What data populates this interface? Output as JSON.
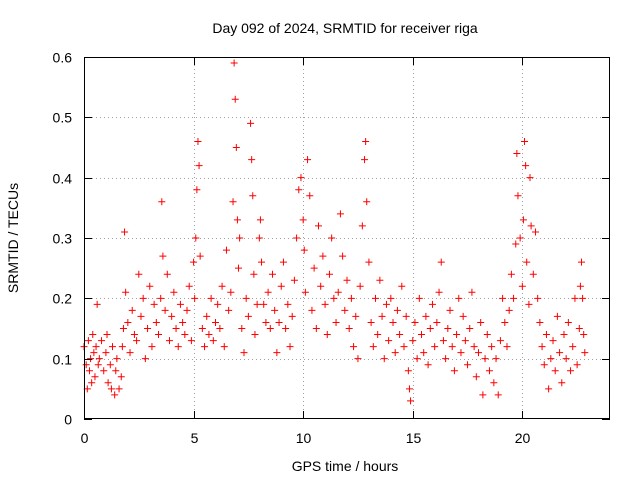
{
  "chart_data": {
    "type": "scatter",
    "title": "Day 092 of 2024, SRMTID for receiver riga",
    "xlabel": "GPS time / hours",
    "ylabel": "SRMTID / TECUs",
    "xlim": [
      0,
      24
    ],
    "ylim": [
      0,
      0.6
    ],
    "xticks": [
      0,
      5,
      10,
      15,
      20
    ],
    "xtick_labels": [
      "0",
      "5",
      "10",
      "15",
      "20"
    ],
    "yticks": [
      0,
      0.1,
      0.2,
      0.3,
      0.4,
      0.5,
      0.6
    ],
    "ytick_labels": [
      "0",
      "0.1",
      "0.2",
      "0.3",
      "0.4",
      "0.5",
      "0.6"
    ],
    "grid": true,
    "marker": "+",
    "color": "#ff0000",
    "series": [
      {
        "name": "SRMTID",
        "points": [
          [
            0.0,
            0.12
          ],
          [
            0.1,
            0.09
          ],
          [
            0.15,
            0.05
          ],
          [
            0.2,
            0.13
          ],
          [
            0.25,
            0.08
          ],
          [
            0.3,
            0.1
          ],
          [
            0.35,
            0.06
          ],
          [
            0.4,
            0.14
          ],
          [
            0.45,
            0.11
          ],
          [
            0.5,
            0.07
          ],
          [
            0.55,
            0.12
          ],
          [
            0.6,
            0.19
          ],
          [
            0.65,
            0.09
          ],
          [
            0.7,
            0.1
          ],
          [
            0.8,
            0.13
          ],
          [
            0.9,
            0.08
          ],
          [
            1.0,
            0.11
          ],
          [
            1.05,
            0.14
          ],
          [
            1.1,
            0.06
          ],
          [
            1.2,
            0.09
          ],
          [
            1.25,
            0.05
          ],
          [
            1.3,
            0.12
          ],
          [
            1.4,
            0.04
          ],
          [
            1.45,
            0.08
          ],
          [
            1.5,
            0.1
          ],
          [
            1.6,
            0.05
          ],
          [
            1.7,
            0.07
          ],
          [
            1.75,
            0.12
          ],
          [
            1.8,
            0.15
          ],
          [
            1.85,
            0.31
          ],
          [
            1.9,
            0.21
          ],
          [
            2.0,
            0.16
          ],
          [
            2.1,
            0.11
          ],
          [
            2.2,
            0.18
          ],
          [
            2.3,
            0.14
          ],
          [
            2.4,
            0.13
          ],
          [
            2.5,
            0.24
          ],
          [
            2.6,
            0.17
          ],
          [
            2.7,
            0.2
          ],
          [
            2.8,
            0.1
          ],
          [
            2.9,
            0.15
          ],
          [
            3.0,
            0.22
          ],
          [
            3.1,
            0.12
          ],
          [
            3.2,
            0.19
          ],
          [
            3.3,
            0.16
          ],
          [
            3.4,
            0.14
          ],
          [
            3.5,
            0.2
          ],
          [
            3.55,
            0.36
          ],
          [
            3.6,
            0.27
          ],
          [
            3.7,
            0.18
          ],
          [
            3.8,
            0.24
          ],
          [
            3.9,
            0.13
          ],
          [
            4.0,
            0.17
          ],
          [
            4.1,
            0.21
          ],
          [
            4.2,
            0.15
          ],
          [
            4.3,
            0.12
          ],
          [
            4.4,
            0.19
          ],
          [
            4.5,
            0.16
          ],
          [
            4.6,
            0.14
          ],
          [
            4.7,
            0.18
          ],
          [
            4.8,
            0.22
          ],
          [
            4.9,
            0.13
          ],
          [
            5.0,
            0.26
          ],
          [
            5.05,
            0.2
          ],
          [
            5.1,
            0.3
          ],
          [
            5.15,
            0.38
          ],
          [
            5.2,
            0.46
          ],
          [
            5.25,
            0.42
          ],
          [
            5.3,
            0.27
          ],
          [
            5.4,
            0.15
          ],
          [
            5.5,
            0.12
          ],
          [
            5.6,
            0.17
          ],
          [
            5.7,
            0.14
          ],
          [
            5.8,
            0.2
          ],
          [
            5.9,
            0.13
          ],
          [
            6.0,
            0.16
          ],
          [
            6.1,
            0.19
          ],
          [
            6.2,
            0.15
          ],
          [
            6.3,
            0.22
          ],
          [
            6.4,
            0.12
          ],
          [
            6.5,
            0.28
          ],
          [
            6.6,
            0.18
          ],
          [
            6.7,
            0.21
          ],
          [
            6.8,
            0.36
          ],
          [
            6.85,
            0.59
          ],
          [
            6.9,
            0.53
          ],
          [
            6.95,
            0.45
          ],
          [
            7.0,
            0.33
          ],
          [
            7.05,
            0.25
          ],
          [
            7.1,
            0.3
          ],
          [
            7.2,
            0.15
          ],
          [
            7.3,
            0.11
          ],
          [
            7.4,
            0.2
          ],
          [
            7.5,
            0.17
          ],
          [
            7.6,
            0.49
          ],
          [
            7.65,
            0.43
          ],
          [
            7.7,
            0.37
          ],
          [
            7.75,
            0.24
          ],
          [
            7.8,
            0.14
          ],
          [
            7.9,
            0.19
          ],
          [
            8.0,
            0.3
          ],
          [
            8.05,
            0.33
          ],
          [
            8.1,
            0.26
          ],
          [
            8.2,
            0.19
          ],
          [
            8.3,
            0.16
          ],
          [
            8.4,
            0.21
          ],
          [
            8.5,
            0.15
          ],
          [
            8.6,
            0.24
          ],
          [
            8.7,
            0.18
          ],
          [
            8.8,
            0.11
          ],
          [
            8.9,
            0.16
          ],
          [
            9.0,
            0.22
          ],
          [
            9.1,
            0.26
          ],
          [
            9.2,
            0.15
          ],
          [
            9.3,
            0.19
          ],
          [
            9.4,
            0.12
          ],
          [
            9.5,
            0.17
          ],
          [
            9.6,
            0.23
          ],
          [
            9.7,
            0.3
          ],
          [
            9.8,
            0.38
          ],
          [
            9.9,
            0.4
          ],
          [
            10.0,
            0.33
          ],
          [
            10.05,
            0.28
          ],
          [
            10.1,
            0.21
          ],
          [
            10.2,
            0.43
          ],
          [
            10.3,
            0.37
          ],
          [
            10.4,
            0.18
          ],
          [
            10.5,
            0.25
          ],
          [
            10.6,
            0.15
          ],
          [
            10.7,
            0.32
          ],
          [
            10.8,
            0.22
          ],
          [
            10.9,
            0.27
          ],
          [
            11.0,
            0.19
          ],
          [
            11.1,
            0.14
          ],
          [
            11.2,
            0.24
          ],
          [
            11.3,
            0.3
          ],
          [
            11.4,
            0.2
          ],
          [
            11.5,
            0.16
          ],
          [
            11.6,
            0.21
          ],
          [
            11.7,
            0.34
          ],
          [
            11.8,
            0.27
          ],
          [
            11.9,
            0.18
          ],
          [
            12.0,
            0.23
          ],
          [
            12.1,
            0.15
          ],
          [
            12.2,
            0.2
          ],
          [
            12.3,
            0.12
          ],
          [
            12.4,
            0.17
          ],
          [
            12.5,
            0.1
          ],
          [
            12.6,
            0.22
          ],
          [
            12.7,
            0.32
          ],
          [
            12.8,
            0.43
          ],
          [
            12.85,
            0.46
          ],
          [
            12.9,
            0.36
          ],
          [
            13.0,
            0.26
          ],
          [
            13.1,
            0.16
          ],
          [
            13.2,
            0.12
          ],
          [
            13.3,
            0.2
          ],
          [
            13.4,
            0.14
          ],
          [
            13.5,
            0.23
          ],
          [
            13.6,
            0.17
          ],
          [
            13.7,
            0.1
          ],
          [
            13.8,
            0.19
          ],
          [
            13.9,
            0.13
          ],
          [
            14.0,
            0.2
          ],
          [
            14.1,
            0.16
          ],
          [
            14.2,
            0.11
          ],
          [
            14.3,
            0.18
          ],
          [
            14.4,
            0.14
          ],
          [
            14.5,
            0.22
          ],
          [
            14.6,
            0.12
          ],
          [
            14.7,
            0.17
          ],
          [
            14.8,
            0.08
          ],
          [
            14.85,
            0.05
          ],
          [
            14.9,
            0.03
          ],
          [
            15.0,
            0.13
          ],
          [
            15.1,
            0.16
          ],
          [
            15.2,
            0.1
          ],
          [
            15.3,
            0.2
          ],
          [
            15.4,
            0.14
          ],
          [
            15.5,
            0.11
          ],
          [
            15.6,
            0.17
          ],
          [
            15.7,
            0.09
          ],
          [
            15.8,
            0.15
          ],
          [
            15.9,
            0.19
          ],
          [
            16.0,
            0.12
          ],
          [
            16.1,
            0.16
          ],
          [
            16.2,
            0.21
          ],
          [
            16.3,
            0.26
          ],
          [
            16.4,
            0.13
          ],
          [
            16.5,
            0.1
          ],
          [
            16.6,
            0.15
          ],
          [
            16.7,
            0.18
          ],
          [
            16.8,
            0.12
          ],
          [
            16.9,
            0.08
          ],
          [
            17.0,
            0.14
          ],
          [
            17.1,
            0.2
          ],
          [
            17.2,
            0.11
          ],
          [
            17.3,
            0.17
          ],
          [
            17.4,
            0.13
          ],
          [
            17.5,
            0.09
          ],
          [
            17.6,
            0.15
          ],
          [
            17.7,
            0.21
          ],
          [
            17.8,
            0.12
          ],
          [
            17.9,
            0.07
          ],
          [
            18.0,
            0.11
          ],
          [
            18.1,
            0.16
          ],
          [
            18.2,
            0.04
          ],
          [
            18.3,
            0.1
          ],
          [
            18.4,
            0.14
          ],
          [
            18.5,
            0.08
          ],
          [
            18.6,
            0.12
          ],
          [
            18.7,
            0.06
          ],
          [
            18.8,
            0.1
          ],
          [
            18.9,
            0.04
          ],
          [
            19.0,
            0.13
          ],
          [
            19.1,
            0.2
          ],
          [
            19.2,
            0.16
          ],
          [
            19.3,
            0.12
          ],
          [
            19.4,
            0.18
          ],
          [
            19.5,
            0.24
          ],
          [
            19.6,
            0.2
          ],
          [
            19.7,
            0.29
          ],
          [
            19.75,
            0.44
          ],
          [
            19.8,
            0.37
          ],
          [
            19.9,
            0.3
          ],
          [
            20.0,
            0.22
          ],
          [
            20.05,
            0.33
          ],
          [
            20.1,
            0.46
          ],
          [
            20.15,
            0.42
          ],
          [
            20.2,
            0.26
          ],
          [
            20.3,
            0.19
          ],
          [
            20.35,
            0.4
          ],
          [
            20.4,
            0.32
          ],
          [
            20.5,
            0.24
          ],
          [
            20.6,
            0.31
          ],
          [
            20.7,
            0.2
          ],
          [
            20.8,
            0.16
          ],
          [
            20.9,
            0.12
          ],
          [
            21.0,
            0.09
          ],
          [
            21.1,
            0.14
          ],
          [
            21.2,
            0.05
          ],
          [
            21.3,
            0.1
          ],
          [
            21.4,
            0.13
          ],
          [
            21.5,
            0.08
          ],
          [
            21.6,
            0.17
          ],
          [
            21.7,
            0.11
          ],
          [
            21.8,
            0.06
          ],
          [
            21.9,
            0.14
          ],
          [
            22.0,
            0.1
          ],
          [
            22.1,
            0.16
          ],
          [
            22.2,
            0.08
          ],
          [
            22.3,
            0.12
          ],
          [
            22.4,
            0.2
          ],
          [
            22.5,
            0.09
          ],
          [
            22.6,
            0.15
          ],
          [
            22.65,
            0.22
          ],
          [
            22.7,
            0.26
          ],
          [
            22.75,
            0.2
          ],
          [
            22.8,
            0.14
          ],
          [
            22.85,
            0.11
          ]
        ]
      }
    ]
  }
}
